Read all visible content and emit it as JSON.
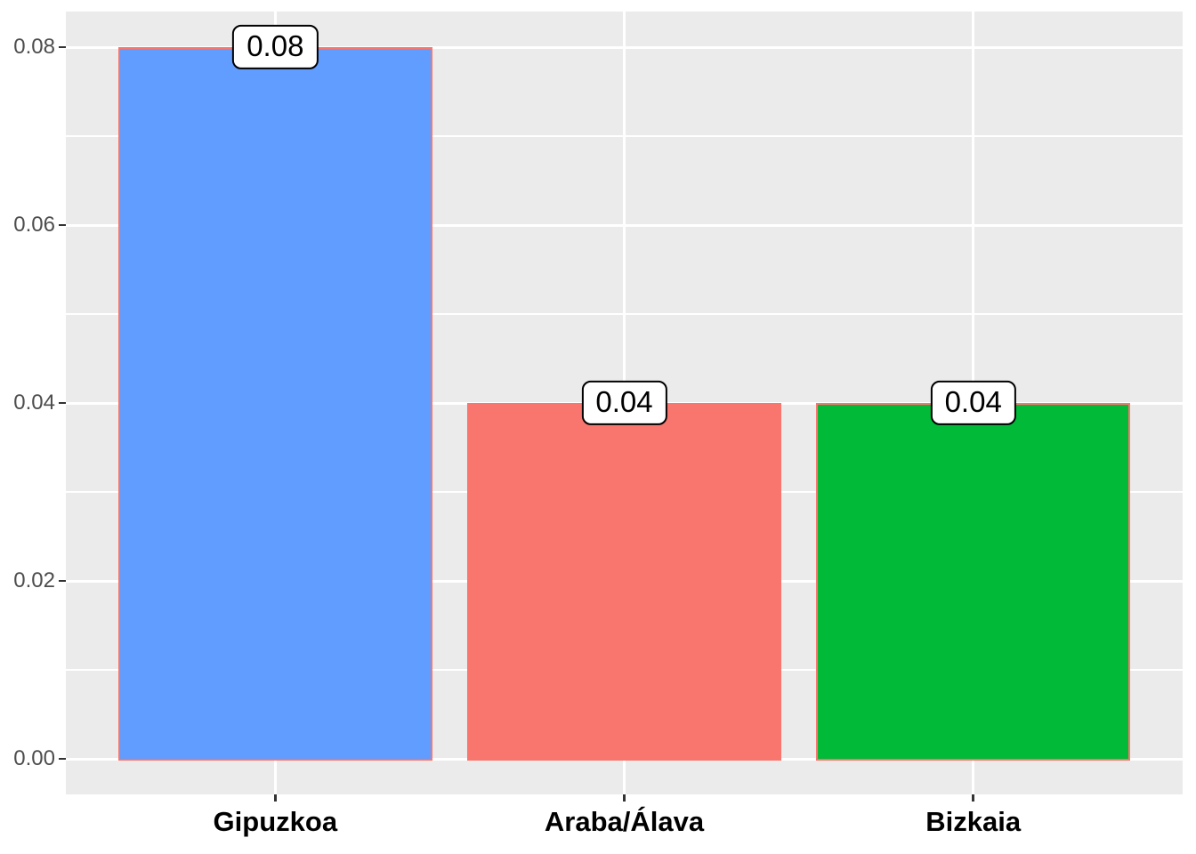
{
  "chart_data": {
    "type": "bar",
    "title": "",
    "xlabel": "",
    "ylabel": "",
    "categories": [
      "Gipuzkoa",
      "Araba/Álava",
      "Bizkaia"
    ],
    "values": [
      0.08,
      0.04,
      0.04
    ],
    "bar_labels": [
      "0.08",
      "0.04",
      "0.04"
    ],
    "y_axis": {
      "tick_values": [
        0,
        0.02,
        0.04,
        0.06,
        0.08
      ],
      "tick_labels": [
        "0.00",
        "0.02",
        "0.04",
        "0.06",
        "0.08"
      ],
      "minor_tick_values": [
        0.01,
        0.03,
        0.05,
        0.07
      ],
      "range_expanded": [
        -0.004,
        0.084
      ]
    },
    "grid": {
      "horizontal_major": true,
      "horizontal_minor": true,
      "vertical_major_at_categories": true,
      "vertical_minor": false
    },
    "legend_position": "none",
    "style": "ggplot2 theme_gray",
    "colors": {
      "bar_fills": [
        "#619CFF",
        "#F8766D",
        "#00BA38"
      ],
      "bar_border": "#F8766D",
      "panel_background": "#EBEBEB",
      "gridline": "#FFFFFF",
      "figure_background": "#FFFFFF",
      "y_tick_text": "#4D4D4D",
      "x_tick_text": "#000000",
      "tick_mark": "#333333",
      "label_box_background": "#FFFFFF",
      "label_box_border": "#000000",
      "label_box_text": "#000000"
    }
  }
}
